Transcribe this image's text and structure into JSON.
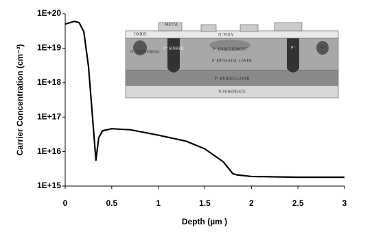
{
  "chart_data": {
    "type": "line",
    "x_label": "Depth (µm )",
    "y_label": "Carrier Concentration (cm⁻³)",
    "yscale": "log",
    "x": [
      0,
      0.1,
      0.15,
      0.2,
      0.25,
      0.3,
      0.33,
      0.36,
      0.4,
      0.5,
      0.7,
      1.0,
      1.3,
      1.5,
      1.7,
      1.8,
      1.85,
      2.0,
      2.5,
      3.0
    ],
    "series": [
      {
        "color": "#000000",
        "values": [
          5e+19,
          6e+19,
          5.5e+19,
          3e+19,
          3e+18,
          6e+16,
          5600000000000000.0,
          2.5e+16,
          4e+16,
          4.6e+16,
          4.3e+16,
          3e+16,
          2e+16,
          1.2e+16,
          5000000000000000.0,
          2300000000000000.0,
          2100000000000000.0,
          1900000000000000.0,
          1800000000000000.0,
          1800000000000000.0
        ]
      }
    ],
    "xlim": [
      0,
      3
    ],
    "xticks": [
      0,
      0.5,
      1,
      1.5,
      2,
      2.5,
      3
    ],
    "ylim": [
      1000000000000000.0,
      1e+20
    ],
    "yticks": [
      {
        "value": 1000000000000000.0,
        "label": "1E+15"
      },
      {
        "value": 1e+16,
        "label": "1E+16"
      },
      {
        "value": 1e+17,
        "label": "1E+17"
      },
      {
        "value": 1e+18,
        "label": "1E+18"
      },
      {
        "value": 1e+19,
        "label": "1E+19"
      },
      {
        "value": 1e+20,
        "label": "1E+20"
      }
    ],
    "grid": false,
    "inset": {
      "labels": [
        "OXIDE",
        "METAL",
        "N⁺POLY",
        "N⁺ GETTERING",
        "P⁺ SINKER",
        "P⁺ ENRICHEMENT",
        "P⁺",
        "N⁺",
        "P⁻EPITAXIAL LAYER",
        "P⁺ BURIED LAYER",
        "N SUBSTRATE"
      ]
    }
  }
}
